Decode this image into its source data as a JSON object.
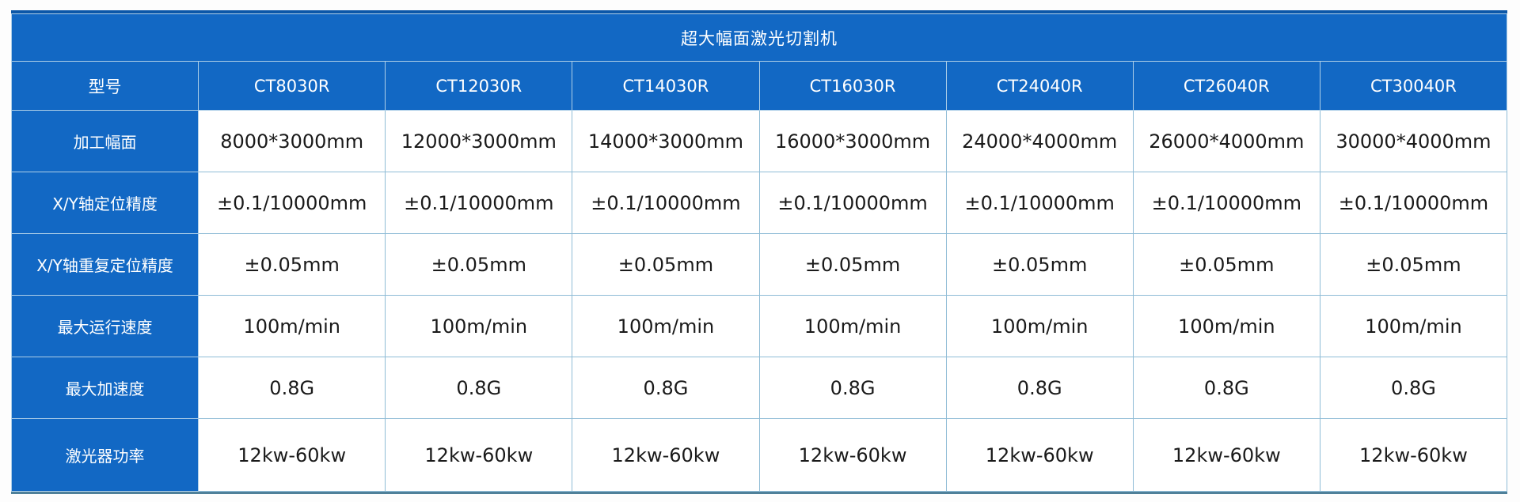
{
  "colors": {
    "primary_blue": "#1268c4",
    "top_border_blue": "#0b57a8",
    "bottom_border_teal": "#4f8099",
    "grid_line_light_blue": "#8fbcd6",
    "value_text": "#1a1a1a",
    "header_text": "#ffffff"
  },
  "chart_data": {
    "type": "table",
    "title": "超大幅面激光切割机",
    "columns": [
      "型号",
      "CT8030R",
      "CT12030R",
      "CT14030R",
      "CT16030R",
      "CT24040R",
      "CT26040R",
      "CT30040R"
    ],
    "rows": [
      [
        "加工幅面",
        "8000*3000mm",
        "12000*3000mm",
        "14000*3000mm",
        "16000*3000mm",
        "24000*4000mm",
        "26000*4000mm",
        "30000*4000mm"
      ],
      [
        "X/Y轴定位精度",
        "±0.1/10000mm",
        "±0.1/10000mm",
        "±0.1/10000mm",
        "±0.1/10000mm",
        "±0.1/10000mm",
        "±0.1/10000mm",
        "±0.1/10000mm"
      ],
      [
        "X/Y轴重复定位精度",
        "±0.05mm",
        "±0.05mm",
        "±0.05mm",
        "±0.05mm",
        "±0.05mm",
        "±0.05mm",
        "±0.05mm"
      ],
      [
        "最大运行速度",
        "100m/min",
        "100m/min",
        "100m/min",
        "100m/min",
        "100m/min",
        "100m/min",
        "100m/min"
      ],
      [
        "最大加速度",
        "0.8G",
        "0.8G",
        "0.8G",
        "0.8G",
        "0.8G",
        "0.8G",
        "0.8G"
      ],
      [
        "激光器功率",
        "12kw-60kw",
        "12kw-60kw",
        "12kw-60kw",
        "12kw-60kw",
        "12kw-60kw",
        "12kw-60kw",
        "12kw-60kw"
      ]
    ],
    "layout": {
      "grid": true,
      "title_position": "top-merged-row",
      "first_column_role": "spec-name",
      "equal_column_count": 8
    }
  }
}
